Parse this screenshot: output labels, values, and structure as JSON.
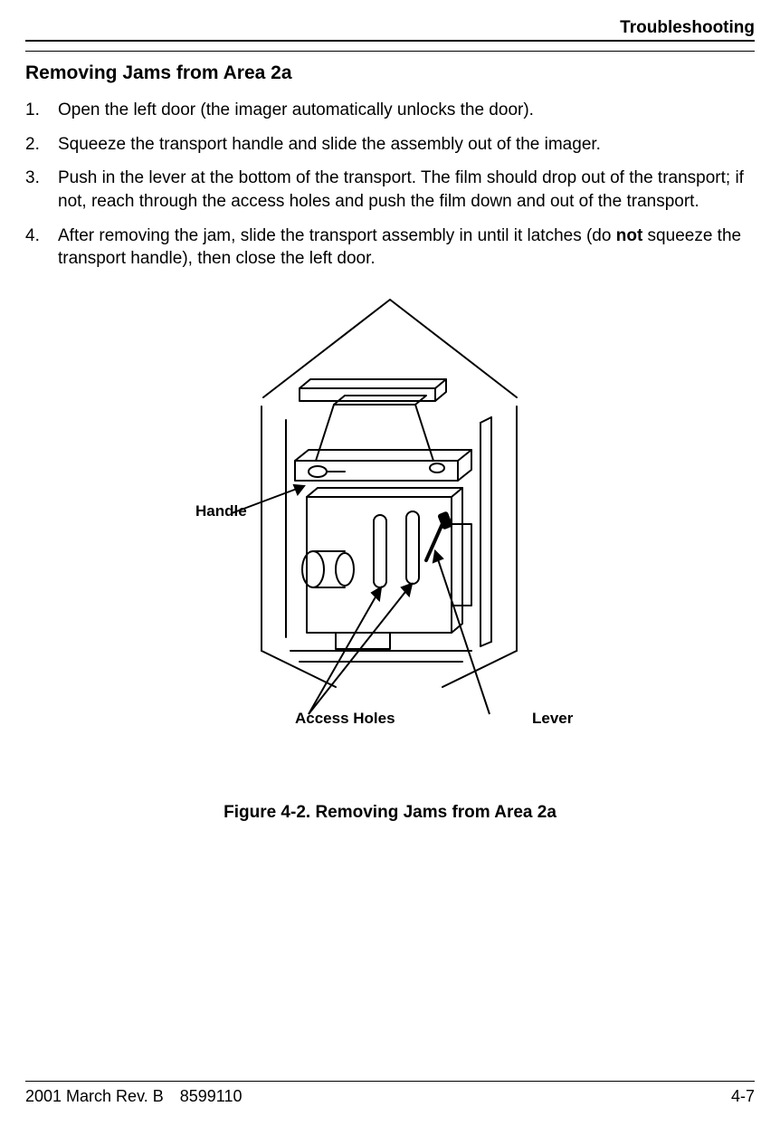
{
  "header": {
    "section": "Troubleshooting"
  },
  "content": {
    "title": "Removing Jams from Area 2a",
    "steps": [
      "Open the left door (the imager automatically unlocks the door).",
      "Squeeze the transport handle and slide the assembly out of the imager.",
      "Push in the lever at the bottom of the transport. The film should drop out of the transport; if not, reach through the access holes and push the film down and out of the transport.",
      "After removing the jam, slide the transport assembly in until it latches (do |not| squeeze the transport handle), then close the left door."
    ]
  },
  "figure": {
    "callouts": {
      "handle": "Handle",
      "access_holes": "Access Holes",
      "lever": "Lever"
    },
    "caption": "Figure 4-2.  Removing Jams from Area 2a",
    "stroke": "#000000",
    "stroke_width": 2,
    "background": "#ffffff"
  },
  "footer": {
    "date_rev": "2001 March Rev. B",
    "doc_no": "8599110",
    "page": "4-7"
  }
}
